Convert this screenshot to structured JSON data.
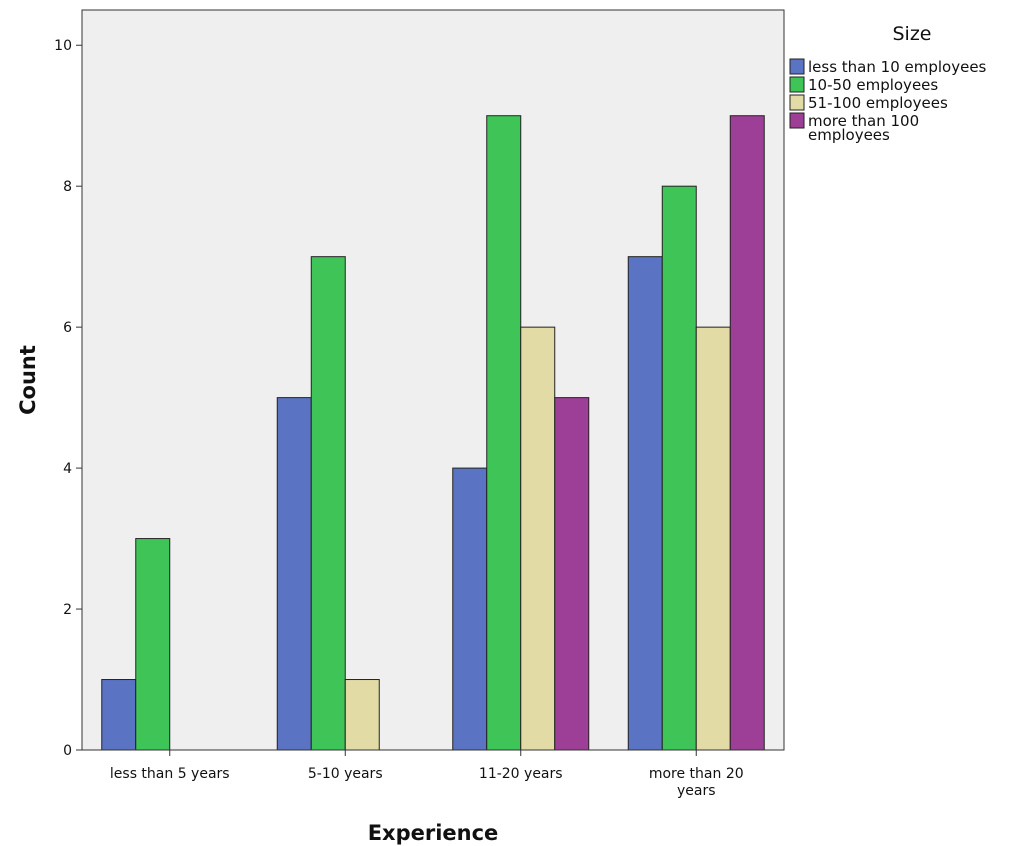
{
  "chart_data": {
    "type": "bar",
    "xlabel": "Experience",
    "ylabel": "Count",
    "ylim": [
      0,
      10.5
    ],
    "yticks": [
      0,
      2,
      4,
      6,
      8,
      10
    ],
    "grid": false,
    "legend": {
      "title": "Size",
      "placement": "right"
    },
    "categories": [
      [
        "less than 5 years"
      ],
      [
        "5-10 years"
      ],
      [
        "11-20 years"
      ],
      [
        "more than 20",
        "years"
      ]
    ],
    "series": [
      {
        "name": [
          "less than 10 employees"
        ],
        "color": "#5a73c3",
        "values": [
          1,
          5,
          4,
          7
        ]
      },
      {
        "name": [
          "10-50 employees"
        ],
        "color": "#3fc458",
        "values": [
          3,
          7,
          9,
          8
        ]
      },
      {
        "name": [
          "51-100 employees"
        ],
        "color": "#e2dba6",
        "values": [
          0,
          1,
          6,
          6
        ]
      },
      {
        "name": [
          "more than 100",
          "employees"
        ],
        "color": "#9d3f96",
        "values": [
          0,
          0,
          5,
          9
        ]
      }
    ]
  }
}
